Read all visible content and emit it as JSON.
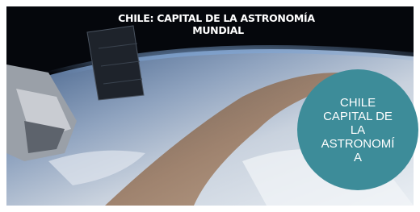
{
  "slide": {
    "title_lines": [
      "CHILE: CAPITAL DE LA ASTRONOMÍA",
      "MUNDIAL"
    ],
    "circle_lines": [
      "CHILE",
      "CAPITAL DE",
      "LA",
      "ASTRONOMÍ",
      "A"
    ]
  }
}
